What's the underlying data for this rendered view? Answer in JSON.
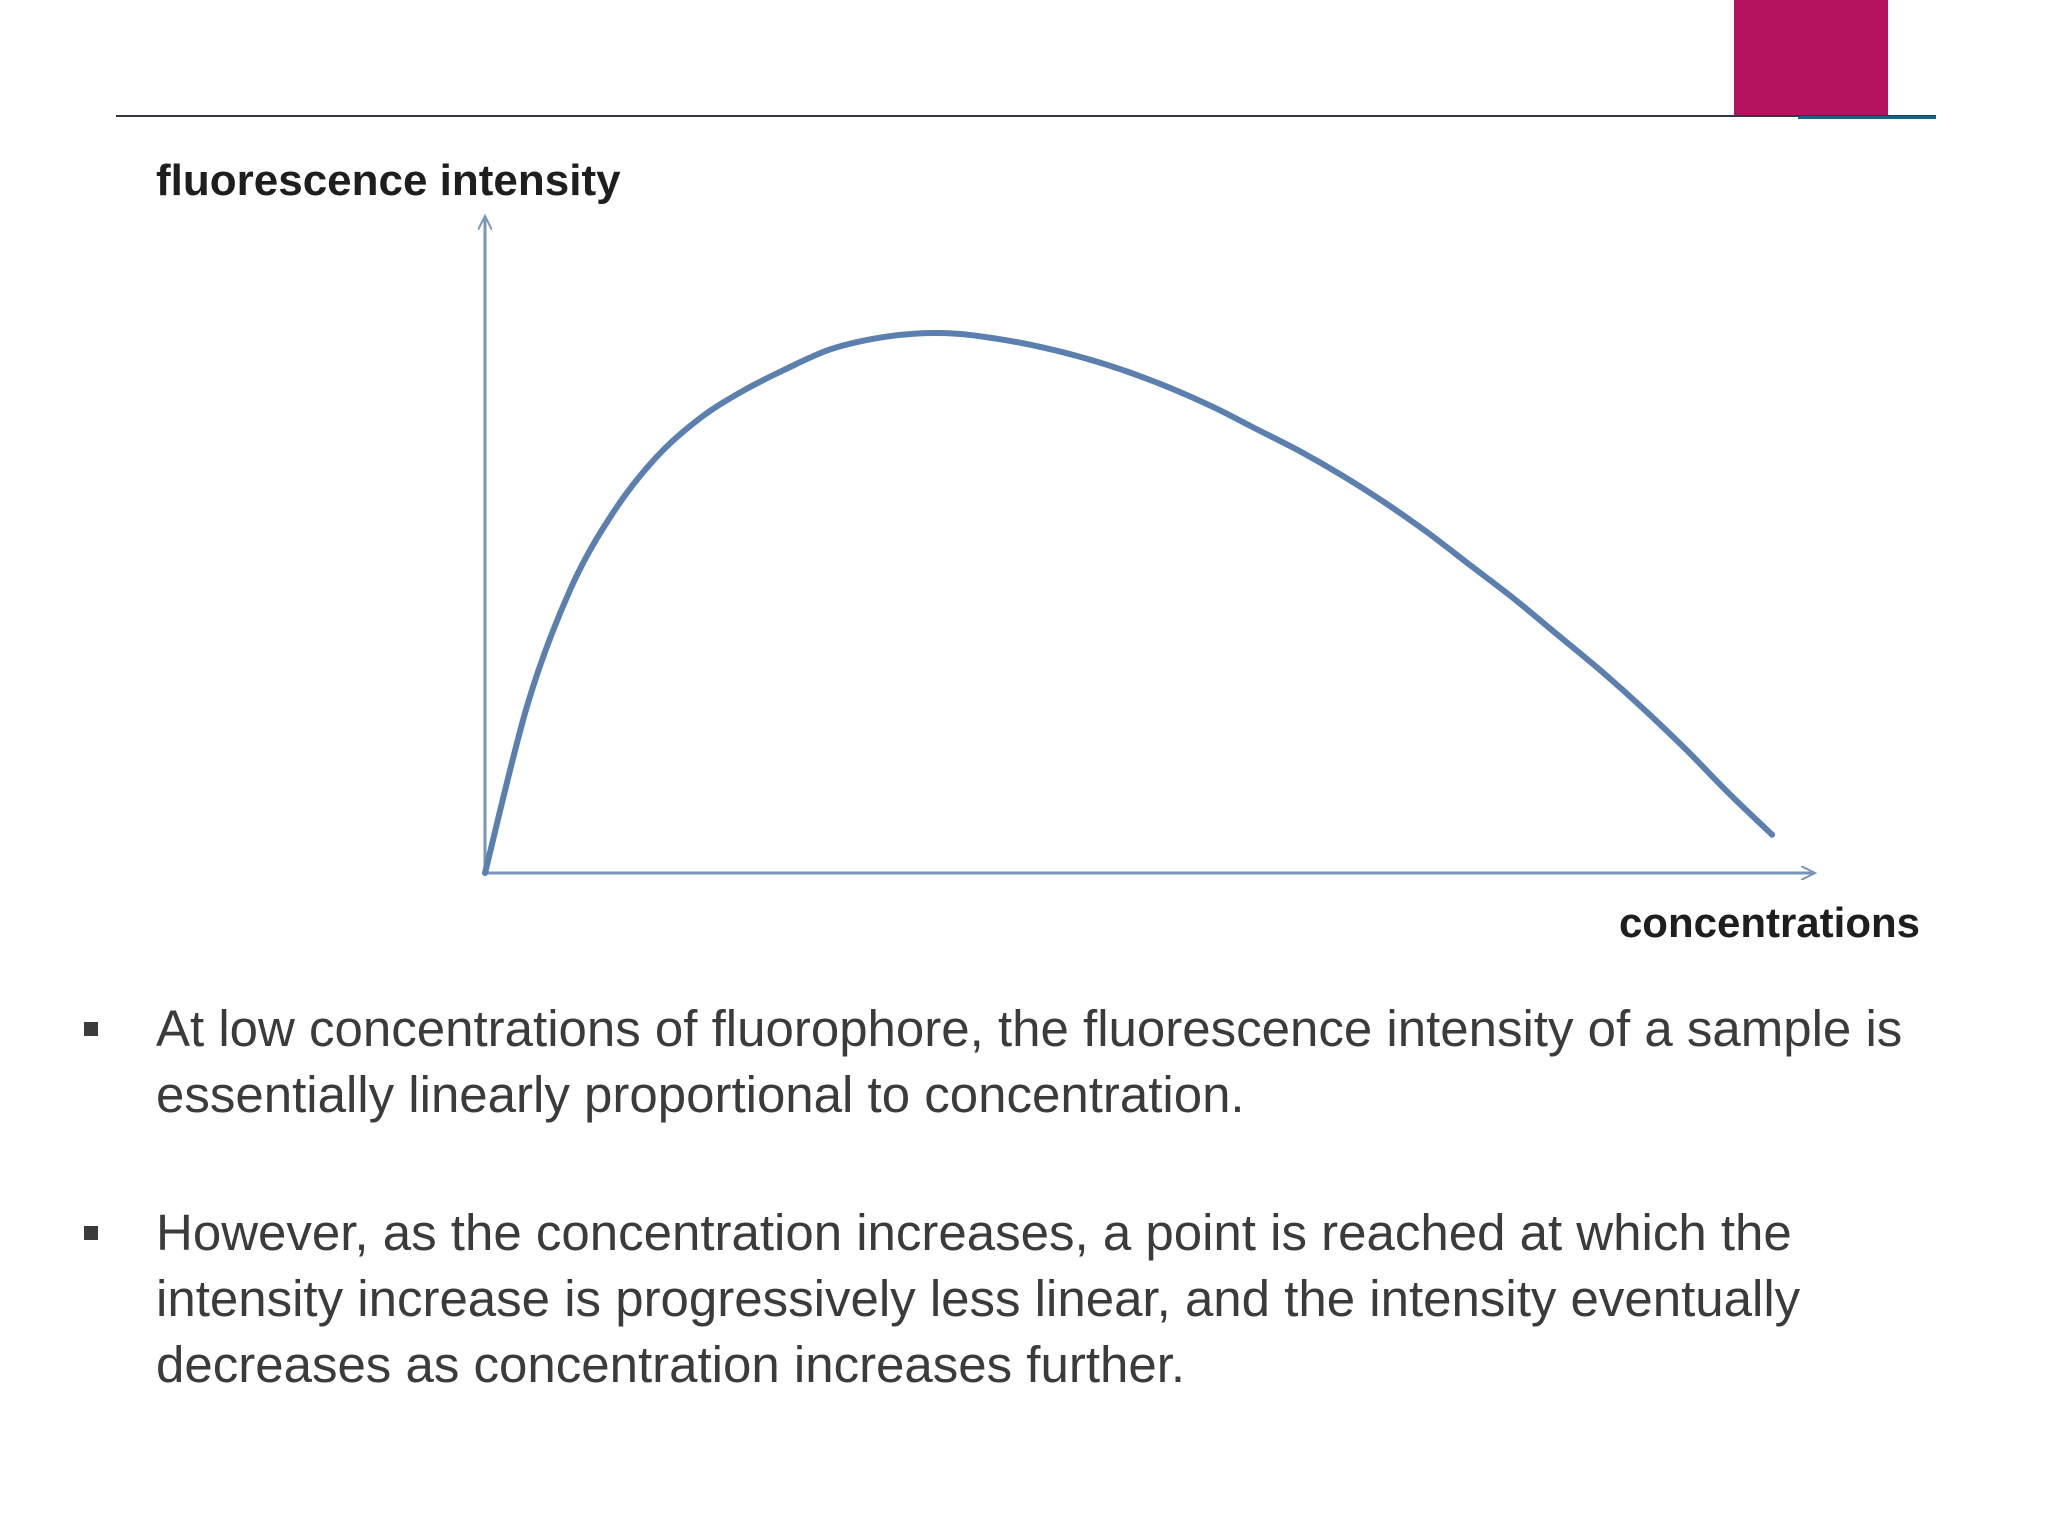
{
  "slide": {
    "accent_color": "#b5125f"
  },
  "chart_data": {
    "type": "line",
    "xlabel": "concentrations",
    "ylabel": "fluorescence intensity",
    "x": [
      0,
      1,
      2,
      3,
      4,
      5,
      6,
      7,
      8,
      9,
      10,
      11,
      12,
      13,
      14,
      15,
      16,
      17,
      18,
      19,
      20,
      21,
      22,
      23,
      24,
      25,
      26,
      27,
      28,
      29,
      30
    ],
    "series": [
      {
        "color": "#5b7fae",
        "values": [
          0,
          3.1,
          5.2,
          6.6,
          7.6,
          8.3,
          8.8,
          9.2,
          9.55,
          9.75,
          9.85,
          9.85,
          9.75,
          9.6,
          9.4,
          9.15,
          8.85,
          8.5,
          8.1,
          7.7,
          7.25,
          6.75,
          6.2,
          5.6,
          5.0,
          4.35,
          3.7,
          3.0,
          2.25,
          1.45,
          0.7
        ]
      }
    ],
    "xlim": [
      0,
      31
    ],
    "ylim": [
      0,
      12
    ],
    "axis_color": "#7a95b8",
    "grid": false,
    "ticks": false
  },
  "bullets": [
    {
      "text": " At low concentrations of fluorophore, the fluorescence intensity of a sample is essentially linearly proportional to concentration."
    },
    {
      "text": "However, as the concentration increases, a point is reached at which the intensity increase is progressively less linear, and the intensity eventually decreases as concentration increases further."
    }
  ]
}
